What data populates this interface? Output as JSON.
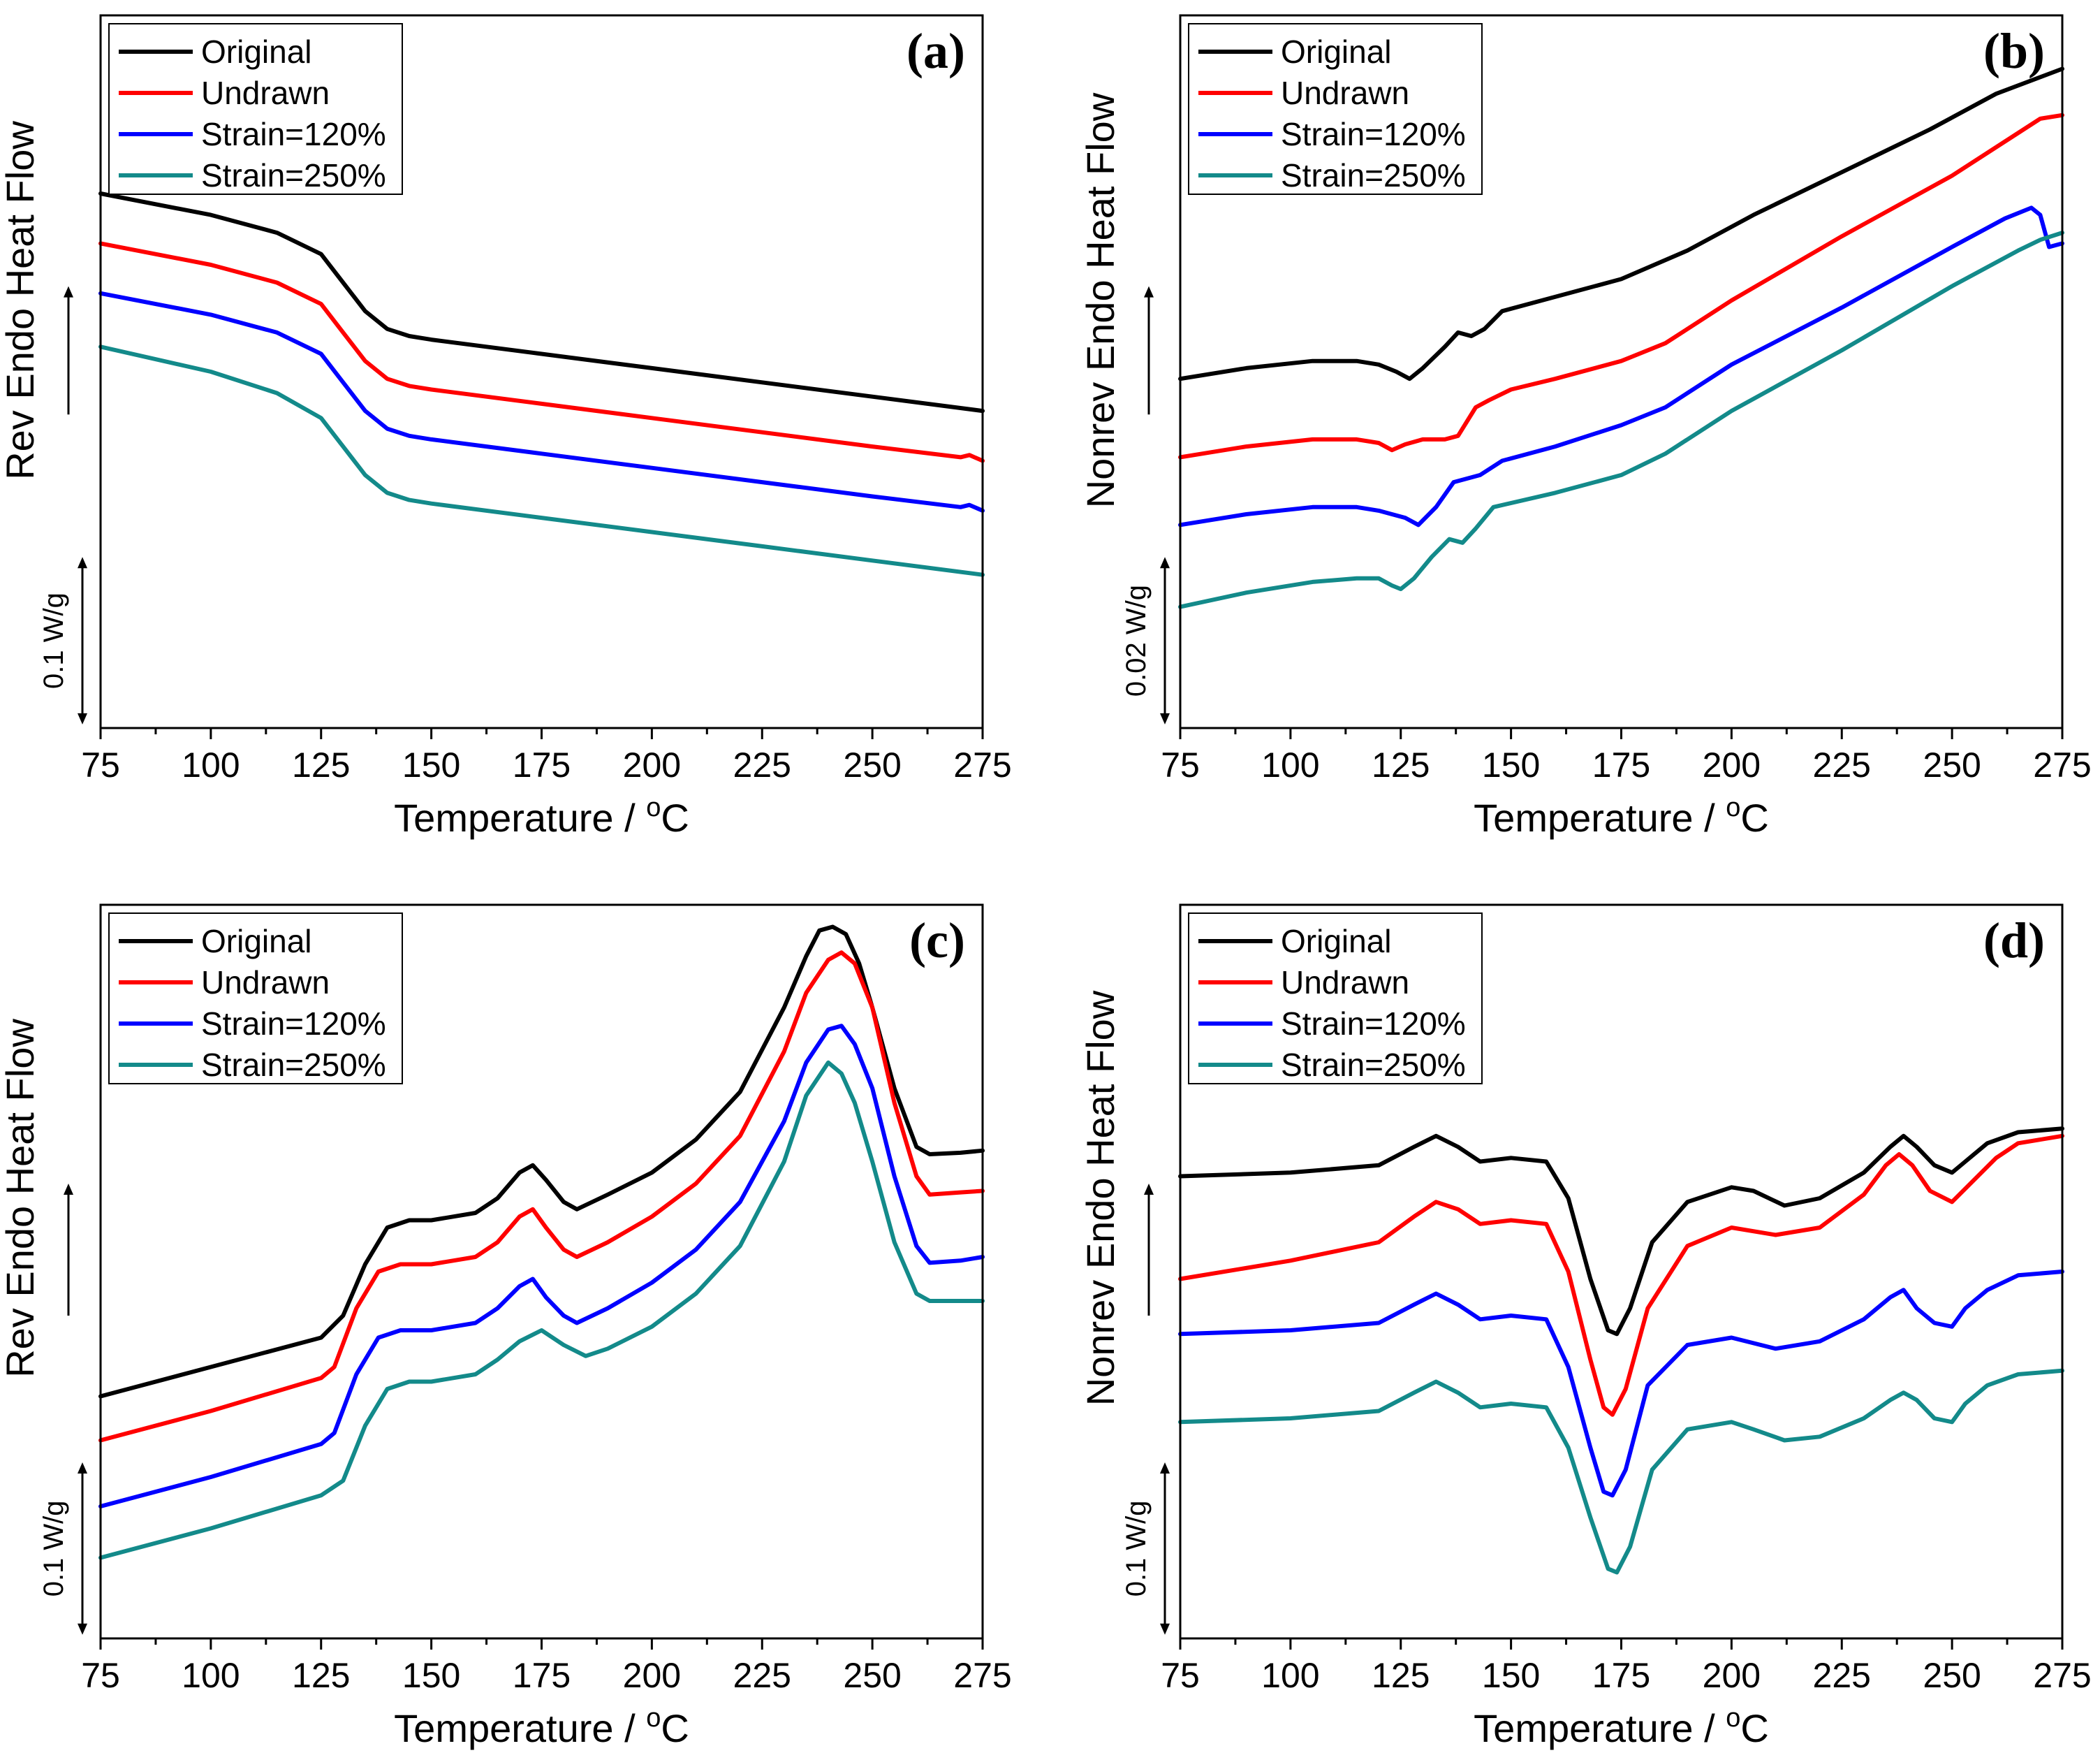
{
  "chart_data": [
    {
      "panel": "(a)",
      "type": "line",
      "xlabel": "Temperature / °C",
      "ylabel": "Rev Endo Heat Flow",
      "scale_bar": "0.1 W/g",
      "xlim": [
        75,
        275
      ],
      "xticks": [
        "75",
        "100",
        "125",
        "150",
        "175",
        "200",
        "225",
        "250",
        "275"
      ],
      "ylim": [
        0,
        10
      ],
      "legend": [
        "Original",
        "Undrawn",
        "Strain=120%",
        "Strain=250%"
      ],
      "series": [
        {
          "name": "Original",
          "color": "#000000",
          "x": [
            75,
            100,
            115,
            125,
            130,
            135,
            140,
            145,
            150,
            175,
            200,
            225,
            250,
            275
          ],
          "y": [
            7.5,
            7.2,
            6.95,
            6.65,
            6.25,
            5.85,
            5.6,
            5.5,
            5.45,
            5.25,
            5.05,
            4.85,
            4.65,
            4.45
          ]
        },
        {
          "name": "Undrawn",
          "color": "#ff0000",
          "x": [
            75,
            100,
            115,
            125,
            130,
            135,
            140,
            145,
            150,
            175,
            200,
            225,
            250,
            270,
            272,
            275
          ],
          "y": [
            6.8,
            6.5,
            6.25,
            5.95,
            5.55,
            5.15,
            4.9,
            4.8,
            4.75,
            4.55,
            4.35,
            4.15,
            3.95,
            3.8,
            3.83,
            3.75
          ]
        },
        {
          "name": "Strain=120%",
          "color": "#0000ff",
          "x": [
            75,
            100,
            115,
            125,
            130,
            135,
            140,
            145,
            150,
            175,
            200,
            225,
            250,
            270,
            272,
            275
          ],
          "y": [
            6.1,
            5.8,
            5.55,
            5.25,
            4.85,
            4.45,
            4.2,
            4.1,
            4.05,
            3.85,
            3.65,
            3.45,
            3.25,
            3.1,
            3.13,
            3.05
          ]
        },
        {
          "name": "Strain=250%",
          "color": "#138a8a",
          "x": [
            75,
            100,
            115,
            125,
            130,
            135,
            140,
            145,
            150,
            175,
            200,
            225,
            250,
            275
          ],
          "y": [
            5.35,
            5.0,
            4.7,
            4.35,
            3.95,
            3.55,
            3.3,
            3.2,
            3.15,
            2.95,
            2.75,
            2.55,
            2.35,
            2.15
          ]
        }
      ]
    },
    {
      "panel": "(b)",
      "type": "line",
      "xlabel": "Temperature / °C",
      "ylabel": "Nonrev Endo Heat Flow",
      "scale_bar": "0.02 W/g",
      "xlim": [
        75,
        275
      ],
      "xticks": [
        "75",
        "100",
        "125",
        "150",
        "175",
        "200",
        "225",
        "250",
        "275"
      ],
      "ylim": [
        0,
        10
      ],
      "legend": [
        "Original",
        "Undrawn",
        "Strain=120%",
        "Strain=250%"
      ],
      "series": [
        {
          "name": "Original",
          "color": "#000000",
          "x": [
            75,
            90,
            105,
            115,
            120,
            124,
            127,
            130,
            135,
            138,
            141,
            144,
            148,
            160,
            175,
            190,
            205,
            225,
            245,
            260,
            275
          ],
          "y": [
            4.9,
            5.05,
            5.15,
            5.15,
            5.1,
            5.0,
            4.9,
            5.05,
            5.35,
            5.55,
            5.5,
            5.6,
            5.85,
            6.05,
            6.3,
            6.7,
            7.2,
            7.8,
            8.4,
            8.9,
            9.25
          ]
        },
        {
          "name": "Undrawn",
          "color": "#ff0000",
          "x": [
            75,
            90,
            105,
            115,
            120,
            123,
            126,
            130,
            135,
            138,
            142,
            145,
            150,
            160,
            175,
            185,
            200,
            225,
            250,
            265,
            270,
            275
          ],
          "y": [
            3.8,
            3.95,
            4.05,
            4.05,
            4.0,
            3.9,
            3.98,
            4.05,
            4.05,
            4.1,
            4.5,
            4.6,
            4.75,
            4.9,
            5.15,
            5.4,
            6.0,
            6.9,
            7.75,
            8.35,
            8.55,
            8.6
          ]
        },
        {
          "name": "Strain=120%",
          "color": "#0000ff",
          "x": [
            75,
            90,
            105,
            115,
            120,
            123,
            126,
            129,
            133,
            137,
            140,
            143,
            148,
            160,
            175,
            185,
            200,
            225,
            250,
            262,
            268,
            270,
            272,
            275
          ],
          "y": [
            2.85,
            3.0,
            3.1,
            3.1,
            3.05,
            3.0,
            2.95,
            2.85,
            3.1,
            3.45,
            3.5,
            3.55,
            3.75,
            3.95,
            4.25,
            4.5,
            5.1,
            5.9,
            6.75,
            7.15,
            7.3,
            7.2,
            6.75,
            6.8
          ]
        },
        {
          "name": "Strain=250%",
          "color": "#138a8a",
          "x": [
            75,
            90,
            105,
            115,
            120,
            123,
            125,
            128,
            132,
            136,
            139,
            142,
            146,
            160,
            175,
            185,
            200,
            225,
            250,
            265,
            270,
            275
          ],
          "y": [
            1.7,
            1.9,
            2.05,
            2.1,
            2.1,
            2.0,
            1.95,
            2.1,
            2.4,
            2.65,
            2.6,
            2.8,
            3.1,
            3.3,
            3.55,
            3.85,
            4.45,
            5.3,
            6.2,
            6.7,
            6.85,
            6.95
          ]
        }
      ]
    },
    {
      "panel": "(c)",
      "type": "line",
      "xlabel": "Temperature / °C",
      "ylabel": "Rev Endo Heat Flow",
      "scale_bar": "0.1 W/g",
      "xlim": [
        75,
        275
      ],
      "xticks": [
        "75",
        "100",
        "125",
        "150",
        "175",
        "200",
        "225",
        "250",
        "275"
      ],
      "ylim": [
        0,
        10
      ],
      "legend": [
        "Original",
        "Undrawn",
        "Strain=120%",
        "Strain=250%"
      ],
      "series": [
        {
          "name": "Original",
          "color": "#000000",
          "x": [
            75,
            100,
            125,
            130,
            135,
            140,
            145,
            150,
            160,
            165,
            170,
            173,
            176,
            180,
            183,
            190,
            200,
            210,
            220,
            230,
            235,
            238,
            241,
            244,
            247,
            250,
            255,
            260,
            263,
            270,
            275
          ],
          "y": [
            3.3,
            3.7,
            4.1,
            4.4,
            5.1,
            5.6,
            5.7,
            5.7,
            5.8,
            6.0,
            6.35,
            6.45,
            6.25,
            5.95,
            5.85,
            6.05,
            6.35,
            6.8,
            7.45,
            8.6,
            9.3,
            9.65,
            9.7,
            9.6,
            9.2,
            8.6,
            7.5,
            6.7,
            6.6,
            6.62,
            6.65
          ]
        },
        {
          "name": "Undrawn",
          "color": "#ff0000",
          "x": [
            75,
            100,
            125,
            128,
            133,
            138,
            143,
            150,
            160,
            165,
            170,
            173,
            176,
            180,
            183,
            190,
            200,
            210,
            220,
            230,
            235,
            240,
            243,
            246,
            250,
            255,
            260,
            263,
            270,
            275
          ],
          "y": [
            2.7,
            3.1,
            3.55,
            3.7,
            4.5,
            5.0,
            5.1,
            5.1,
            5.2,
            5.4,
            5.75,
            5.85,
            5.6,
            5.3,
            5.2,
            5.4,
            5.75,
            6.2,
            6.85,
            8.0,
            8.8,
            9.25,
            9.35,
            9.2,
            8.6,
            7.3,
            6.3,
            6.05,
            6.08,
            6.1
          ]
        },
        {
          "name": "Strain=120%",
          "color": "#0000ff",
          "x": [
            75,
            100,
            125,
            128,
            133,
            138,
            143,
            150,
            160,
            165,
            170,
            173,
            176,
            180,
            183,
            190,
            200,
            210,
            220,
            230,
            235,
            240,
            243,
            246,
            250,
            255,
            260,
            263,
            270,
            275
          ],
          "y": [
            1.8,
            2.2,
            2.65,
            2.8,
            3.6,
            4.1,
            4.2,
            4.2,
            4.3,
            4.5,
            4.8,
            4.9,
            4.65,
            4.4,
            4.3,
            4.5,
            4.85,
            5.3,
            5.95,
            7.05,
            7.85,
            8.3,
            8.35,
            8.1,
            7.5,
            6.3,
            5.35,
            5.12,
            5.15,
            5.2
          ]
        },
        {
          "name": "Strain=250%",
          "color": "#138a8a",
          "x": [
            75,
            100,
            125,
            130,
            135,
            140,
            145,
            150,
            160,
            165,
            170,
            175,
            180,
            185,
            190,
            200,
            210,
            220,
            230,
            235,
            240,
            243,
            246,
            250,
            255,
            260,
            263,
            270,
            275
          ],
          "y": [
            1.1,
            1.5,
            1.95,
            2.15,
            2.9,
            3.4,
            3.5,
            3.5,
            3.6,
            3.8,
            4.05,
            4.2,
            4.0,
            3.85,
            3.95,
            4.25,
            4.7,
            5.35,
            6.5,
            7.4,
            7.85,
            7.7,
            7.3,
            6.5,
            5.4,
            4.7,
            4.6,
            4.6,
            4.6
          ]
        }
      ]
    },
    {
      "panel": "(d)",
      "type": "line",
      "xlabel": "Temperature / °C",
      "ylabel": "Nonrev Endo Heat Flow",
      "scale_bar": "0.1 W/g",
      "xlim": [
        75,
        275
      ],
      "xticks": [
        "75",
        "100",
        "125",
        "150",
        "175",
        "200",
        "225",
        "250",
        "275"
      ],
      "ylim": [
        0,
        10
      ],
      "legend": [
        "Original",
        "Undrawn",
        "Strain=120%",
        "Strain=250%"
      ],
      "series": [
        {
          "name": "Original",
          "color": "#000000",
          "x": [
            75,
            100,
            120,
            128,
            133,
            138,
            143,
            150,
            158,
            163,
            168,
            172,
            174,
            177,
            182,
            190,
            200,
            205,
            212,
            220,
            230,
            236,
            239,
            242,
            246,
            250,
            253,
            258,
            265,
            275
          ],
          "y": [
            6.3,
            6.35,
            6.45,
            6.7,
            6.85,
            6.7,
            6.5,
            6.55,
            6.5,
            6.0,
            4.9,
            4.2,
            4.15,
            4.5,
            5.4,
            5.95,
            6.15,
            6.1,
            5.9,
            6.0,
            6.35,
            6.7,
            6.85,
            6.7,
            6.45,
            6.35,
            6.5,
            6.75,
            6.9,
            6.95
          ]
        },
        {
          "name": "Undrawn",
          "color": "#ff0000",
          "x": [
            75,
            100,
            120,
            128,
            133,
            138,
            143,
            150,
            158,
            163,
            168,
            171,
            173,
            176,
            181,
            190,
            200,
            210,
            220,
            230,
            235,
            238,
            241,
            245,
            250,
            255,
            260,
            265,
            275
          ],
          "y": [
            4.9,
            5.15,
            5.4,
            5.75,
            5.95,
            5.85,
            5.65,
            5.7,
            5.65,
            5.0,
            3.8,
            3.15,
            3.05,
            3.4,
            4.5,
            5.35,
            5.6,
            5.5,
            5.6,
            6.05,
            6.45,
            6.6,
            6.45,
            6.1,
            5.95,
            6.25,
            6.55,
            6.75,
            6.85
          ]
        },
        {
          "name": "Strain=120%",
          "color": "#0000ff",
          "x": [
            75,
            100,
            120,
            128,
            133,
            138,
            143,
            150,
            158,
            163,
            168,
            171,
            173,
            176,
            181,
            190,
            200,
            210,
            220,
            230,
            236,
            239,
            242,
            246,
            250,
            253,
            258,
            265,
            275
          ],
          "y": [
            4.15,
            4.2,
            4.3,
            4.55,
            4.7,
            4.55,
            4.35,
            4.4,
            4.35,
            3.7,
            2.6,
            2.0,
            1.95,
            2.3,
            3.45,
            4.0,
            4.1,
            3.95,
            4.05,
            4.35,
            4.65,
            4.75,
            4.5,
            4.3,
            4.25,
            4.5,
            4.75,
            4.95,
            5.0
          ]
        },
        {
          "name": "Strain=250%",
          "color": "#138a8a",
          "x": [
            75,
            100,
            120,
            128,
            133,
            138,
            143,
            150,
            158,
            163,
            168,
            172,
            174,
            177,
            182,
            190,
            200,
            205,
            212,
            220,
            230,
            236,
            239,
            242,
            246,
            250,
            253,
            258,
            265,
            275
          ],
          "y": [
            2.95,
            3.0,
            3.1,
            3.35,
            3.5,
            3.35,
            3.15,
            3.2,
            3.15,
            2.6,
            1.65,
            0.95,
            0.9,
            1.25,
            2.3,
            2.85,
            2.95,
            2.85,
            2.7,
            2.75,
            3.0,
            3.25,
            3.35,
            3.25,
            3.0,
            2.95,
            3.2,
            3.45,
            3.6,
            3.65
          ]
        }
      ]
    }
  ]
}
